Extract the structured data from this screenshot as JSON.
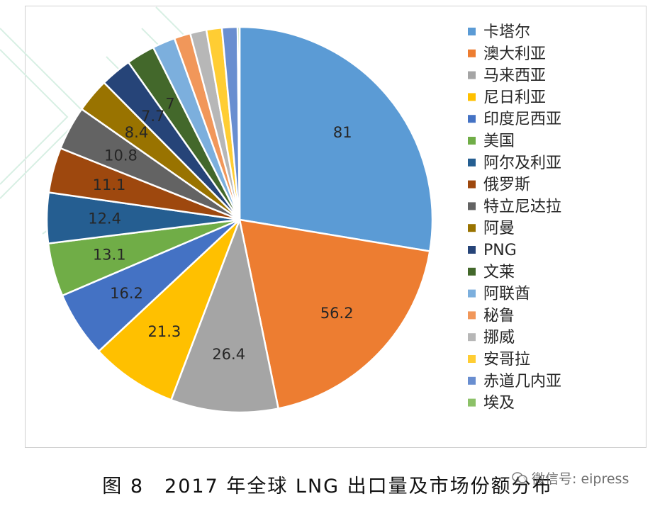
{
  "chart_data": {
    "type": "pie",
    "title": "",
    "legend_position": "right",
    "series": [
      {
        "name": "卡塔尔",
        "value": 81,
        "label": "81",
        "color": "#5B9BD5"
      },
      {
        "name": "澳大利亚",
        "value": 56.2,
        "label": "56.2",
        "color": "#ED7D31"
      },
      {
        "name": "马来西亚",
        "value": 26.4,
        "label": "26.4",
        "color": "#A5A5A5"
      },
      {
        "name": "尼日利亚",
        "value": 21.3,
        "label": "21.3",
        "color": "#FFC000"
      },
      {
        "name": "印度尼西亚",
        "value": 16.2,
        "label": "16.2",
        "color": "#4472C4"
      },
      {
        "name": "美国",
        "value": 13.1,
        "label": "13.1",
        "color": "#70AD47"
      },
      {
        "name": "阿尔及利亚",
        "value": 12.4,
        "label": "12.4",
        "color": "#255E91"
      },
      {
        "name": "俄罗斯",
        "value": 11.1,
        "label": "11.1",
        "color": "#9E480E"
      },
      {
        "name": "特立尼达拉",
        "value": 10.8,
        "label": "10.8",
        "color": "#636363"
      },
      {
        "name": "阿曼",
        "value": 8.4,
        "label": "8.4",
        "color": "#997300"
      },
      {
        "name": "PNG",
        "value": 7.7,
        "label": "7.7",
        "color": "#264478"
      },
      {
        "name": "文莱",
        "value": 7,
        "label": "7",
        "color": "#43682B"
      },
      {
        "name": "阿联酋",
        "value": 5.6,
        "label": "",
        "color": "#7CAFDD"
      },
      {
        "name": "秘鲁",
        "value": 4.0,
        "label": "",
        "color": "#F1975A"
      },
      {
        "name": "挪威",
        "value": 4.0,
        "label": "",
        "color": "#B7B7B7"
      },
      {
        "name": "安哥拉",
        "value": 3.8,
        "label": "",
        "color": "#FFCD33"
      },
      {
        "name": "赤道几内亚",
        "value": 3.8,
        "label": "",
        "color": "#698ED0"
      },
      {
        "name": "埃及",
        "value": 0.5,
        "label": "",
        "color": "#8CC168"
      }
    ]
  },
  "caption": "图 8　2017 年全球 LNG 出口量及市场份额分布",
  "watermark": "微信号: eipress"
}
